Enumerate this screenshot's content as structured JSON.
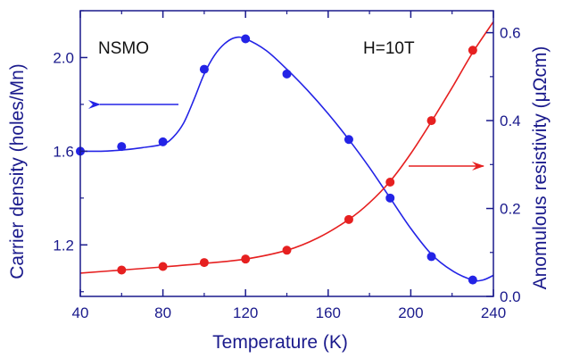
{
  "chart_data": {
    "type": "scatter",
    "x_axis": {
      "label": "Temperature (K)",
      "range": [
        40,
        240
      ],
      "ticks": [
        40,
        80,
        120,
        160,
        200,
        240
      ],
      "tick_labels": [
        "40",
        "80",
        "120",
        "160",
        "200",
        "240"
      ]
    },
    "y_axis_left": {
      "label": "Carrier density (holes/Mn)",
      "range": [
        0.98,
        2.2
      ],
      "ticks": [
        1.2,
        1.6,
        2.0
      ],
      "tick_labels": [
        "1.2",
        "1.6",
        "2.0"
      ]
    },
    "y_axis_right": {
      "label": "Anomulous resistivity (μΩcm)",
      "range": [
        0.0,
        0.65
      ],
      "ticks": [
        0.0,
        0.2,
        0.4,
        0.6
      ],
      "tick_labels": [
        "0.0",
        "0.2",
        "0.4",
        "0.6"
      ]
    },
    "annotations": {
      "sample": "NSMO",
      "field": "H=10T"
    },
    "series": [
      {
        "axis": "left",
        "color": "#2323e6",
        "points": [
          {
            "x": 40,
            "y": 1.6
          },
          {
            "x": 60,
            "y": 1.62
          },
          {
            "x": 80,
            "y": 1.64
          },
          {
            "x": 100,
            "y": 1.95
          },
          {
            "x": 120,
            "y": 2.08
          },
          {
            "x": 140,
            "y": 1.93
          },
          {
            "x": 170,
            "y": 1.65
          },
          {
            "x": 190,
            "y": 1.4
          },
          {
            "x": 210,
            "y": 1.15
          },
          {
            "x": 230,
            "y": 1.05
          }
        ],
        "fit": [
          {
            "x": 40,
            "y": 1.6
          },
          {
            "x": 50,
            "y": 1.6
          },
          {
            "x": 60,
            "y": 1.605
          },
          {
            "x": 70,
            "y": 1.615
          },
          {
            "x": 80,
            "y": 1.63
          },
          {
            "x": 85,
            "y": 1.66
          },
          {
            "x": 90,
            "y": 1.72
          },
          {
            "x": 95,
            "y": 1.82
          },
          {
            "x": 100,
            "y": 1.93
          },
          {
            "x": 105,
            "y": 2.01
          },
          {
            "x": 110,
            "y": 2.06
          },
          {
            "x": 115,
            "y": 2.085
          },
          {
            "x": 120,
            "y": 2.08
          },
          {
            "x": 130,
            "y": 2.03
          },
          {
            "x": 140,
            "y": 1.95
          },
          {
            "x": 150,
            "y": 1.86
          },
          {
            "x": 160,
            "y": 1.76
          },
          {
            "x": 170,
            "y": 1.65
          },
          {
            "x": 180,
            "y": 1.53
          },
          {
            "x": 190,
            "y": 1.4
          },
          {
            "x": 200,
            "y": 1.27
          },
          {
            "x": 210,
            "y": 1.16
          },
          {
            "x": 220,
            "y": 1.09
          },
          {
            "x": 230,
            "y": 1.05
          },
          {
            "x": 235,
            "y": 1.05
          },
          {
            "x": 240,
            "y": 1.07
          }
        ]
      },
      {
        "axis": "right",
        "color": "#e62020",
        "points": [
          {
            "x": 60,
            "y": 0.06
          },
          {
            "x": 80,
            "y": 0.068
          },
          {
            "x": 100,
            "y": 0.077
          },
          {
            "x": 120,
            "y": 0.085
          },
          {
            "x": 140,
            "y": 0.105
          },
          {
            "x": 170,
            "y": 0.175
          },
          {
            "x": 190,
            "y": 0.26
          },
          {
            "x": 210,
            "y": 0.4
          },
          {
            "x": 230,
            "y": 0.56
          }
        ],
        "fit": [
          {
            "x": 40,
            "y": 0.053
          },
          {
            "x": 60,
            "y": 0.06
          },
          {
            "x": 80,
            "y": 0.067
          },
          {
            "x": 100,
            "y": 0.075
          },
          {
            "x": 120,
            "y": 0.085
          },
          {
            "x": 140,
            "y": 0.105
          },
          {
            "x": 155,
            "y": 0.133
          },
          {
            "x": 170,
            "y": 0.175
          },
          {
            "x": 180,
            "y": 0.213
          },
          {
            "x": 190,
            "y": 0.262
          },
          {
            "x": 200,
            "y": 0.325
          },
          {
            "x": 210,
            "y": 0.398
          },
          {
            "x": 220,
            "y": 0.475
          },
          {
            "x": 230,
            "y": 0.555
          },
          {
            "x": 240,
            "y": 0.625
          }
        ]
      }
    ],
    "arrows": [
      {
        "series": 0,
        "points_to": "left",
        "color": "#2323e6"
      },
      {
        "series": 1,
        "points_to": "right",
        "color": "#e62020"
      }
    ]
  }
}
